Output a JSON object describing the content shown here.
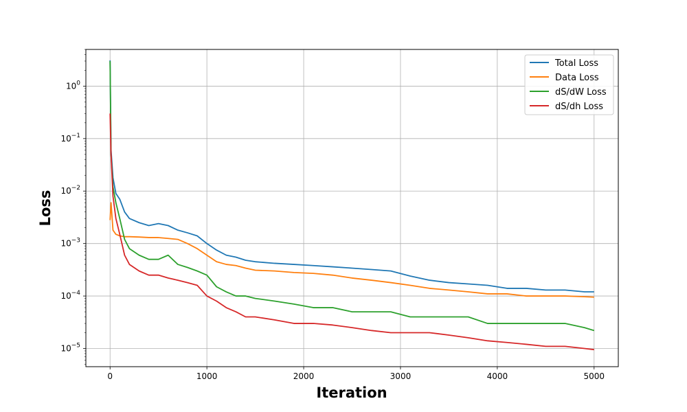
{
  "chart_data": {
    "type": "line",
    "title": "",
    "xlabel": "Iteration",
    "ylabel": "Loss",
    "yscale": "log",
    "xlim": [
      -250,
      5250
    ],
    "ylim": [
      4.5e-06,
      5
    ],
    "x_ticks": [
      0,
      1000,
      2000,
      3000,
      4000,
      5000
    ],
    "x_tick_labels": [
      "0",
      "1000",
      "2000",
      "3000",
      "4000",
      "5000"
    ],
    "y_ticks": [
      1e-05,
      0.0001,
      0.001,
      0.01,
      0.1,
      1
    ],
    "y_tick_labels": [
      {
        "base": "10",
        "exp": "−5"
      },
      {
        "base": "10",
        "exp": "−4"
      },
      {
        "base": "10",
        "exp": "−3"
      },
      {
        "base": "10",
        "exp": "−2"
      },
      {
        "base": "10",
        "exp": "−1"
      },
      {
        "base": "10",
        "exp": "0"
      }
    ],
    "grid": true,
    "legend_position": "top-right",
    "series": [
      {
        "name": "Total Loss",
        "color": "#1f77b4",
        "x": [
          0,
          10,
          30,
          60,
          100,
          150,
          200,
          300,
          400,
          500,
          600,
          700,
          800,
          900,
          1000,
          1100,
          1200,
          1300,
          1400,
          1500,
          1700,
          1900,
          2100,
          2300,
          2500,
          2700,
          2900,
          3100,
          3300,
          3500,
          3700,
          3900,
          4100,
          4300,
          4500,
          4700,
          4900,
          5000
        ],
        "values": [
          3.1,
          0.06,
          0.018,
          0.009,
          0.007,
          0.004,
          0.003,
          0.0025,
          0.0022,
          0.0024,
          0.0022,
          0.0018,
          0.0016,
          0.0014,
          0.001,
          0.00075,
          0.0006,
          0.00055,
          0.00048,
          0.00045,
          0.00042,
          0.0004,
          0.00038,
          0.00036,
          0.00034,
          0.00032,
          0.0003,
          0.00024,
          0.0002,
          0.00018,
          0.00017,
          0.00016,
          0.00014,
          0.00014,
          0.00013,
          0.00013,
          0.00012,
          0.00012
        ]
      },
      {
        "name": "Data Loss",
        "color": "#ff7f0e",
        "x": [
          0,
          10,
          30,
          60,
          100,
          150,
          200,
          300,
          400,
          500,
          600,
          700,
          800,
          900,
          1000,
          1100,
          1200,
          1300,
          1400,
          1500,
          1700,
          1900,
          2100,
          2300,
          2500,
          2700,
          2900,
          3100,
          3300,
          3500,
          3700,
          3900,
          4100,
          4300,
          4500,
          4700,
          4900,
          5000
        ],
        "values": [
          0.0028,
          0.006,
          0.0018,
          0.0015,
          0.0014,
          0.00135,
          0.00135,
          0.00133,
          0.0013,
          0.0013,
          0.00125,
          0.0012,
          0.001,
          0.0008,
          0.0006,
          0.00045,
          0.0004,
          0.00038,
          0.00034,
          0.00031,
          0.0003,
          0.00028,
          0.00027,
          0.00025,
          0.00022,
          0.0002,
          0.00018,
          0.00016,
          0.00014,
          0.00013,
          0.00012,
          0.00011,
          0.00011,
          0.0001,
          0.0001,
          0.0001,
          9.7e-05,
          9.5e-05
        ]
      },
      {
        "name": "dS/dW Loss",
        "color": "#2ca02c",
        "x": [
          0,
          10,
          30,
          60,
          100,
          150,
          200,
          300,
          400,
          500,
          600,
          700,
          800,
          900,
          1000,
          1100,
          1200,
          1300,
          1400,
          1500,
          1700,
          1900,
          2100,
          2300,
          2500,
          2700,
          2900,
          3100,
          3300,
          3500,
          3700,
          3900,
          4100,
          4300,
          4500,
          4700,
          4900,
          5000
        ],
        "values": [
          3.0,
          0.05,
          0.012,
          0.006,
          0.003,
          0.0012,
          0.0008,
          0.0006,
          0.0005,
          0.0005,
          0.0006,
          0.0004,
          0.00035,
          0.0003,
          0.00025,
          0.00015,
          0.00012,
          0.0001,
          0.0001,
          9e-05,
          8e-05,
          7e-05,
          6e-05,
          6e-05,
          5e-05,
          5e-05,
          5e-05,
          4e-05,
          4e-05,
          4e-05,
          4e-05,
          3e-05,
          3e-05,
          3e-05,
          3e-05,
          3e-05,
          2.5e-05,
          2.2e-05
        ]
      },
      {
        "name": "dS/dh Loss",
        "color": "#d62728",
        "x": [
          0,
          10,
          30,
          60,
          100,
          150,
          200,
          300,
          400,
          500,
          600,
          700,
          800,
          900,
          1000,
          1100,
          1200,
          1300,
          1400,
          1500,
          1700,
          1900,
          2100,
          2300,
          2500,
          2700,
          2900,
          3100,
          3300,
          3500,
          3700,
          3900,
          4100,
          4300,
          4500,
          4700,
          4900,
          5000
        ],
        "values": [
          0.3,
          0.05,
          0.008,
          0.003,
          0.0015,
          0.0006,
          0.0004,
          0.0003,
          0.00025,
          0.00025,
          0.00022,
          0.0002,
          0.00018,
          0.00016,
          0.0001,
          8e-05,
          6e-05,
          5e-05,
          4e-05,
          4e-05,
          3.5e-05,
          3e-05,
          3e-05,
          2.8e-05,
          2.5e-05,
          2.2e-05,
          2e-05,
          2e-05,
          2e-05,
          1.8e-05,
          1.6e-05,
          1.4e-05,
          1.3e-05,
          1.2e-05,
          1.1e-05,
          1.1e-05,
          1e-05,
          9.5e-06
        ]
      }
    ]
  }
}
